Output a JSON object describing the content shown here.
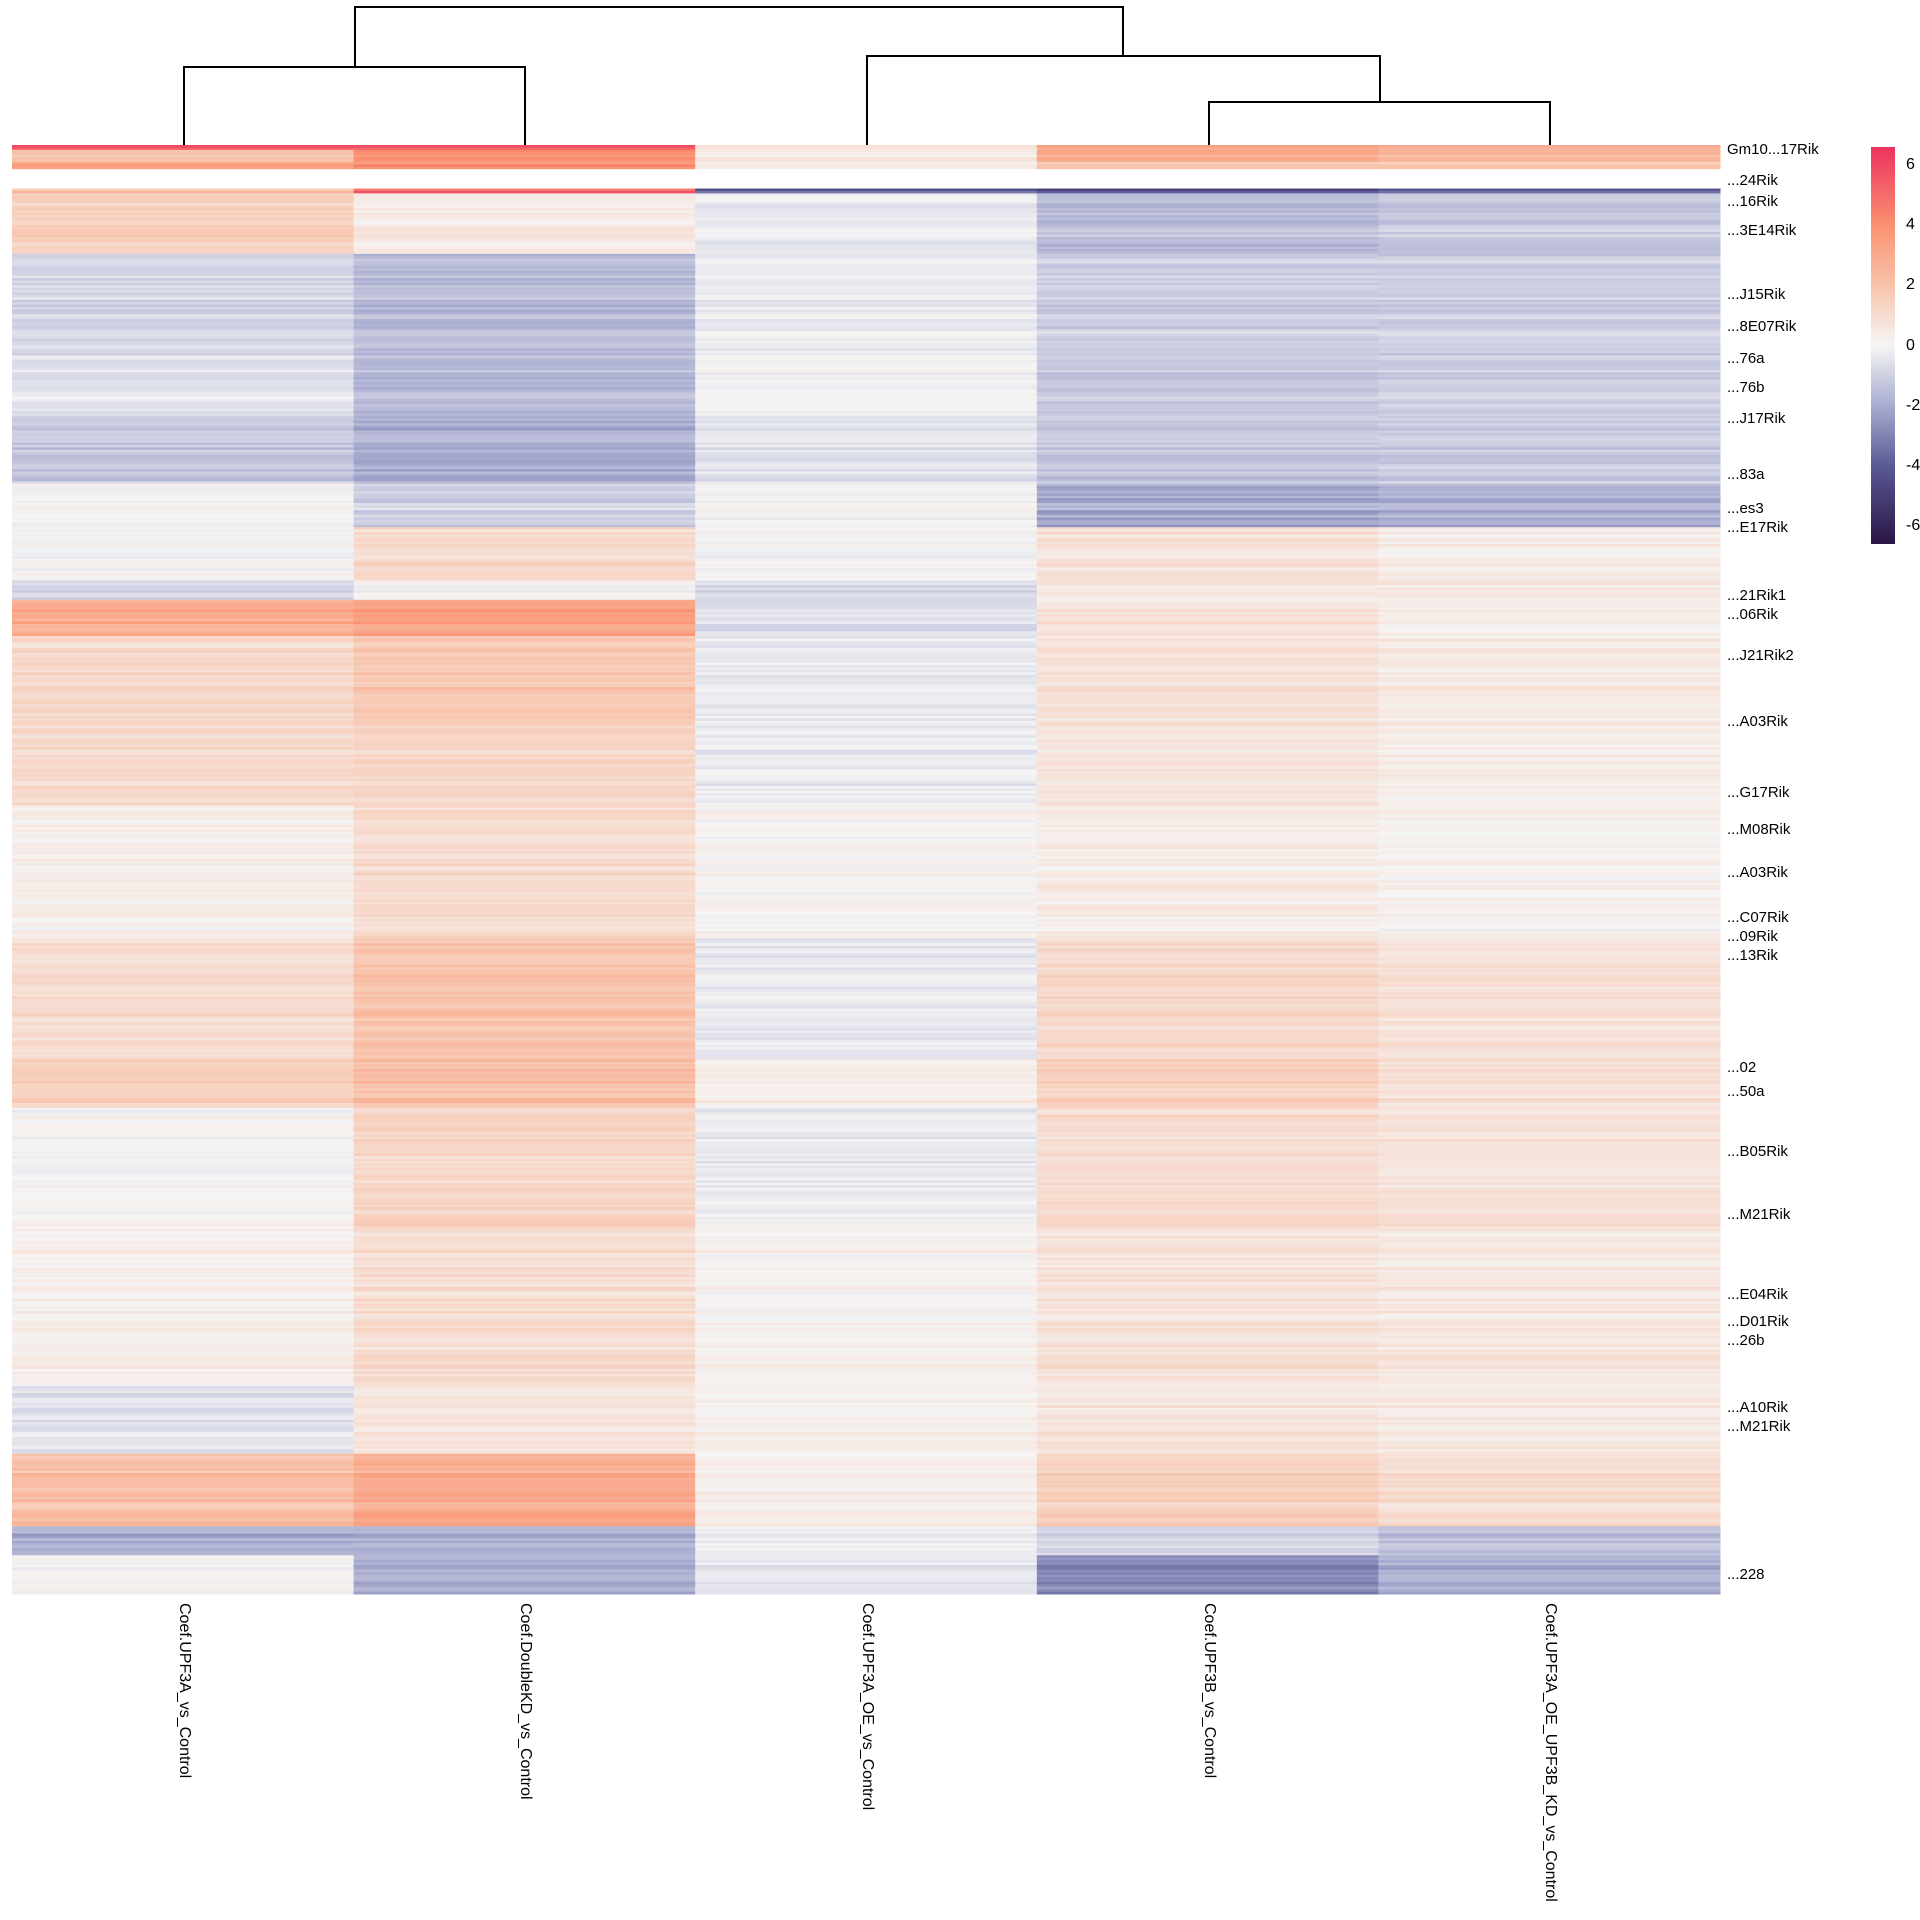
{
  "chart_data": {
    "type": "heatmap",
    "columns": [
      "Coef.UPF3A_vs_Control",
      "Coef.DoubleKD_vs_Control",
      "Coef.UPF3A_OE_vs_Control",
      "Coef.UPF3B_vs_Control",
      "Coef.UPF3A_OE_UPF3B_KD_vs_Control"
    ],
    "column_dendrogram": {
      "merges": [
        [
          "Coef.UPF3A_vs_Control",
          "Coef.DoubleKD_vs_Control"
        ],
        [
          "Coef.UPF3B_vs_Control",
          "Coef.UPF3A_OE_UPF3B_KD_vs_Control"
        ],
        [
          "Coef.UPF3A_OE_vs_Control",
          "cluster(UPF3B,UPF3A_OE_UPF3B_KD)"
        ],
        [
          "cluster(UPF3A,DoubleKD)",
          "cluster(UPF3A_OE,UPF3B,UPF3A_OE_UPF3B_KD)"
        ]
      ],
      "relative_heights": [
        0.67,
        0.32,
        0.7,
        1.0
      ]
    },
    "row_blocks": [
      {
        "rows": 2,
        "values": [
          6,
          6,
          1,
          3.5,
          3
        ]
      },
      {
        "rows": 5,
        "values": [
          2,
          4,
          0.5,
          3,
          2.5
        ]
      },
      {
        "rows": 3,
        "values": [
          3.5,
          4.2,
          0.4,
          2,
          2
        ]
      },
      {
        "rows": 8,
        "values": null
      },
      {
        "rows": 2,
        "values": [
          2,
          5,
          -4,
          -4.5,
          -4
        ]
      },
      {
        "rows": 25,
        "values": [
          1.5,
          0.5,
          -0.3,
          -1.5,
          -1.2
        ]
      },
      {
        "rows": 42,
        "values": [
          -0.8,
          -1.5,
          -0.2,
          -1,
          -1
        ]
      },
      {
        "rows": 25,
        "values": [
          -0.5,
          -1.6,
          0,
          -1.2,
          -1
        ]
      },
      {
        "rows": 28,
        "values": [
          -1.3,
          -2,
          -0.5,
          -1.3,
          -1.2
        ]
      },
      {
        "rows": 18,
        "values": [
          0,
          -1,
          0,
          -2,
          -1.8
        ]
      },
      {
        "rows": 22,
        "values": [
          0,
          1,
          0,
          0.8,
          0.4
        ]
      },
      {
        "rows": 8,
        "values": [
          -0.8,
          0,
          -0.8,
          0.5,
          0.5
        ]
      },
      {
        "rows": 15,
        "values": [
          3,
          3.5,
          -0.5,
          0.8,
          0.4
        ]
      },
      {
        "rows": 35,
        "values": [
          1.2,
          1.8,
          -0.3,
          0.8,
          0.5
        ]
      },
      {
        "rows": 35,
        "values": [
          1,
          1.2,
          -0.3,
          0.6,
          0.3
        ]
      },
      {
        "rows": 55,
        "values": [
          0.3,
          1,
          0.1,
          0.4,
          0.2
        ]
      },
      {
        "rows": 50,
        "values": [
          1,
          2,
          -0.3,
          1.2,
          0.8
        ]
      },
      {
        "rows": 20,
        "values": [
          1.5,
          2.2,
          0.3,
          1.5,
          0.8
        ]
      },
      {
        "rows": 50,
        "values": [
          0,
          1.2,
          -0.3,
          1,
          0.7
        ]
      },
      {
        "rows": 65,
        "values": [
          0.3,
          1,
          0.2,
          0.8,
          0.6
        ]
      },
      {
        "rows": 28,
        "values": [
          -0.5,
          0.7,
          0.2,
          0.7,
          0.5
        ]
      },
      {
        "rows": 30,
        "values": [
          2.2,
          3,
          0.3,
          1.5,
          1
        ]
      },
      {
        "rows": 12,
        "values": [
          -2,
          -2,
          -0.3,
          -1,
          -1.5
        ]
      },
      {
        "rows": 16,
        "values": [
          0,
          -2,
          -0.5,
          -3,
          -2
        ]
      }
    ],
    "row_labels_visible": [
      "Gm10...17Rik",
      "...24Rik",
      "...16Rik",
      "...3E14Rik",
      "...J15Rik",
      "...8E07Rik",
      "...76a",
      "...76b",
      "...J17Rik",
      "...83a",
      "...es3",
      "...E17Rik",
      "...21Rik1",
      "...06Rik",
      "...J21Rik2",
      "...A03Rik",
      "...G17Rik",
      "...M08Rik",
      "...A03Rik",
      "...C07Rik",
      "...09Rik",
      "...13Rik",
      "...02",
      "...50a",
      "...B05Rik",
      "...M21Rik",
      "...E04Rik",
      "...D01Rik",
      "...26b",
      "...A10Rik",
      "...M21Rik",
      "...228"
    ],
    "color_scale": {
      "range": [
        -6.6,
        6.6
      ],
      "stops": [
        {
          "value": -6.6,
          "color": "#2a1545"
        },
        {
          "value": -4,
          "color": "#5a5a95"
        },
        {
          "value": -2,
          "color": "#a9acd0"
        },
        {
          "value": 0,
          "color": "#f5f5f5"
        },
        {
          "value": 2,
          "color": "#f8c3ab"
        },
        {
          "value": 4,
          "color": "#fa9170"
        },
        {
          "value": 6.6,
          "color": "#ec325f"
        }
      ],
      "ticks": [
        "6",
        "4",
        "2",
        "0",
        "-2",
        "-4",
        "-6"
      ]
    },
    "legend_placement": "right"
  }
}
